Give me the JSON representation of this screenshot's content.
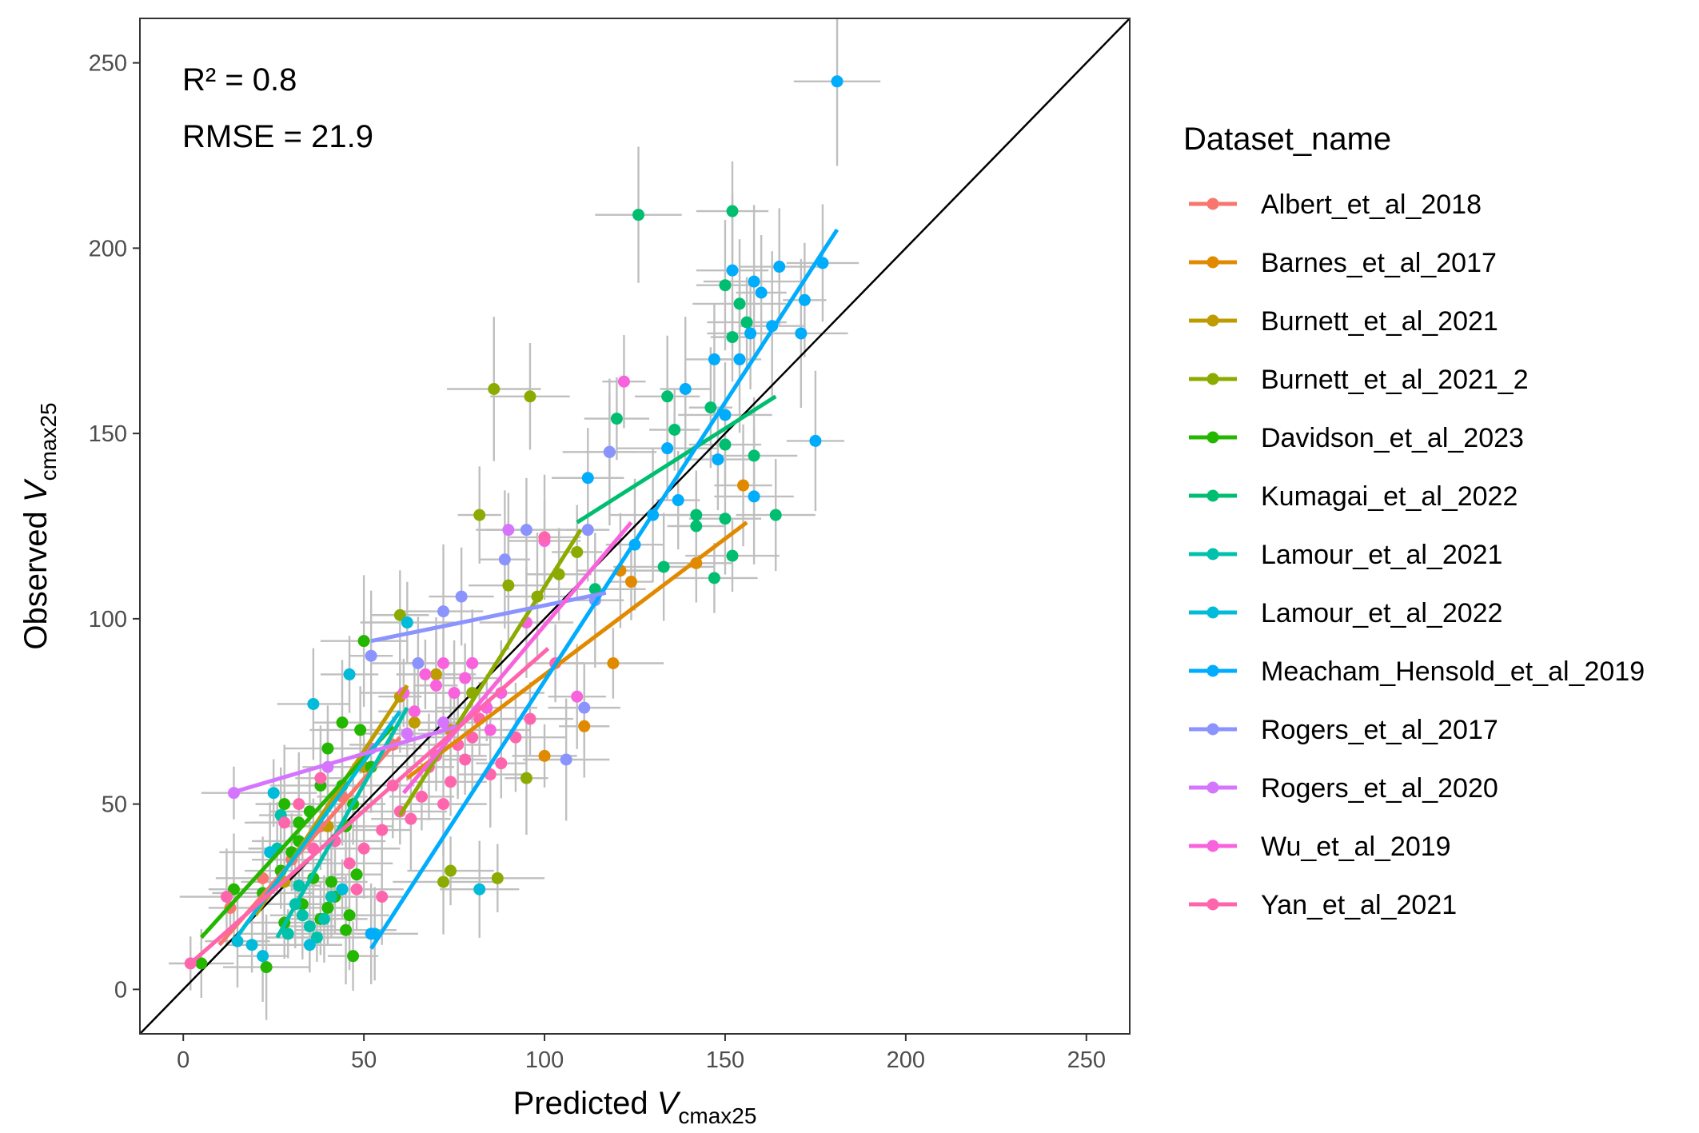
{
  "chart_data": {
    "type": "scatter",
    "title": "",
    "xlabel": {
      "main": "Predicted ",
      "var": "V",
      "sub": "cmax25"
    },
    "ylabel": {
      "main": "Observed ",
      "var": "V",
      "sub": "cmax25"
    },
    "xlim": [
      -12,
      262
    ],
    "ylim": [
      -12,
      262
    ],
    "xticks": [
      0,
      50,
      100,
      150,
      200,
      250
    ],
    "yticks": [
      0,
      50,
      100,
      150,
      200,
      250
    ],
    "grid": false,
    "one_to_one_line": true,
    "annotations": [
      "R² = 0.8",
      "RMSE = 21.9"
    ],
    "legend": {
      "title": "Dataset_name",
      "position": "right"
    },
    "series": [
      {
        "name": "Albert_et_al_2018",
        "color": "#F8766D",
        "points": [
          [
            13,
            22
          ],
          [
            22,
            30
          ],
          [
            30,
            35
          ],
          [
            38,
            44
          ],
          [
            44,
            52
          ],
          [
            52,
            60
          ],
          [
            58,
            66
          ]
        ],
        "fit": [
          [
            10,
            12
          ],
          [
            60,
            68
          ]
        ]
      },
      {
        "name": "Barnes_et_al_2017",
        "color": "#E18A00",
        "points": [
          [
            100,
            63
          ],
          [
            111,
            71
          ],
          [
            119,
            88
          ],
          [
            121,
            113
          ],
          [
            142,
            115
          ],
          [
            155,
            136
          ],
          [
            124,
            110
          ]
        ],
        "fit": [
          [
            62,
            57
          ],
          [
            156,
            126
          ]
        ]
      },
      {
        "name": "Burnett_et_al_2021",
        "color": "#BE9C00",
        "points": [
          [
            28,
            29
          ],
          [
            40,
            44
          ],
          [
            50,
            60
          ],
          [
            60,
            79
          ],
          [
            64,
            72
          ],
          [
            70,
            85
          ],
          [
            74,
            70
          ]
        ],
        "fit": [
          [
            20,
            20
          ],
          [
            62,
            82
          ]
        ]
      },
      {
        "name": "Burnett_et_al_2021_2",
        "color": "#8CAB00",
        "points": [
          [
            82,
            128
          ],
          [
            86,
            162
          ],
          [
            96,
            160
          ],
          [
            98,
            106
          ],
          [
            109,
            118
          ],
          [
            72,
            29
          ],
          [
            74,
            32
          ],
          [
            80,
            80
          ],
          [
            60,
            101
          ],
          [
            95,
            57
          ],
          [
            87,
            30
          ],
          [
            90,
            109
          ],
          [
            104,
            112
          ]
        ],
        "fit": [
          [
            60,
            47
          ],
          [
            110,
            124
          ]
        ]
      },
      {
        "name": "Davidson_et_al_2023",
        "color": "#24B700",
        "points": [
          [
            5,
            7
          ],
          [
            14,
            27
          ],
          [
            22,
            26
          ],
          [
            23,
            6
          ],
          [
            27,
            32
          ],
          [
            28,
            50
          ],
          [
            30,
            37
          ],
          [
            32,
            45
          ],
          [
            35,
            48
          ],
          [
            36,
            30
          ],
          [
            38,
            19
          ],
          [
            38,
            55
          ],
          [
            40,
            65
          ],
          [
            41,
            29
          ],
          [
            42,
            25
          ],
          [
            44,
            55
          ],
          [
            45,
            44
          ],
          [
            46,
            20
          ],
          [
            47,
            50
          ],
          [
            48,
            31
          ],
          [
            49,
            70
          ],
          [
            50,
            94
          ],
          [
            52,
            60
          ],
          [
            44,
            72
          ],
          [
            40,
            22
          ],
          [
            32,
            40
          ],
          [
            28,
            18
          ],
          [
            33,
            23
          ],
          [
            47,
            9
          ],
          [
            45,
            16
          ]
        ],
        "fit": [
          [
            5,
            14
          ],
          [
            58,
            71
          ]
        ]
      },
      {
        "name": "Kumagai_et_al_2022",
        "color": "#00BE70",
        "points": [
          [
            126,
            209
          ],
          [
            152,
            210
          ],
          [
            150,
            190
          ],
          [
            152,
            176
          ],
          [
            154,
            185
          ],
          [
            156,
            180
          ],
          [
            134,
            160
          ],
          [
            136,
            151
          ],
          [
            133,
            114
          ],
          [
            147,
            111
          ],
          [
            150,
            127
          ],
          [
            142,
            128
          ],
          [
            146,
            157
          ],
          [
            152,
            117
          ],
          [
            164,
            128
          ],
          [
            120,
            154
          ],
          [
            118,
            145
          ],
          [
            114,
            108
          ],
          [
            158,
            144
          ],
          [
            150,
            147
          ],
          [
            142,
            125
          ]
        ],
        "fit": [
          [
            109,
            126
          ],
          [
            164,
            160
          ]
        ]
      },
      {
        "name": "Lamour_et_al_2021",
        "color": "#00C1AB",
        "points": [
          [
            27,
            47
          ],
          [
            29,
            15
          ],
          [
            31,
            23
          ],
          [
            33,
            20
          ],
          [
            35,
            17
          ],
          [
            37,
            14
          ],
          [
            39,
            19
          ],
          [
            41,
            25
          ],
          [
            26,
            38
          ],
          [
            32,
            28
          ]
        ],
        "fit": [
          [
            26,
            14
          ],
          [
            62,
            76
          ]
        ]
      },
      {
        "name": "Lamour_et_al_2022",
        "color": "#00BBDA",
        "points": [
          [
            15,
            13
          ],
          [
            19,
            12
          ],
          [
            24,
            37
          ],
          [
            25,
            53
          ],
          [
            36,
            77
          ],
          [
            46,
            85
          ],
          [
            53,
            15
          ],
          [
            62,
            99
          ],
          [
            82,
            27
          ],
          [
            35,
            12
          ],
          [
            22,
            9
          ],
          [
            44,
            27
          ]
        ],
        "fit": [
          [
            14,
            13
          ],
          [
            60,
            75
          ]
        ]
      },
      {
        "name": "Meacham_Hensold_et_al_2019",
        "color": "#00ACFC",
        "points": [
          [
            181,
            245
          ],
          [
            177,
            196
          ],
          [
            175,
            148
          ],
          [
            172,
            186
          ],
          [
            171,
            177
          ],
          [
            165,
            195
          ],
          [
            163,
            179
          ],
          [
            160,
            188
          ],
          [
            158,
            191
          ],
          [
            157,
            177
          ],
          [
            152,
            194
          ],
          [
            147,
            170
          ],
          [
            154,
            170
          ],
          [
            150,
            155
          ],
          [
            158,
            133
          ],
          [
            148,
            143
          ],
          [
            139,
            162
          ],
          [
            134,
            146
          ],
          [
            130,
            128
          ],
          [
            112,
            138
          ],
          [
            125,
            120
          ],
          [
            137,
            132
          ],
          [
            52,
            15
          ]
        ],
        "fit": [
          [
            52,
            11
          ],
          [
            181,
            205
          ]
        ]
      },
      {
        "name": "Rogers_et_al_2017",
        "color": "#8B93FF",
        "points": [
          [
            52,
            90
          ],
          [
            65,
            88
          ],
          [
            72,
            102
          ],
          [
            77,
            106
          ],
          [
            89,
            116
          ],
          [
            95,
            124
          ],
          [
            106,
            62
          ],
          [
            111,
            76
          ],
          [
            114,
            105
          ],
          [
            112,
            124
          ],
          [
            118,
            145
          ]
        ],
        "fit": [
          [
            52,
            94
          ],
          [
            117,
            107
          ]
        ]
      },
      {
        "name": "Rogers_et_al_2020",
        "color": "#D575FE",
        "points": [
          [
            14,
            53
          ],
          [
            40,
            60
          ],
          [
            52,
            65
          ],
          [
            62,
            69
          ],
          [
            72,
            72
          ],
          [
            80,
            88
          ],
          [
            90,
            124
          ]
        ],
        "fit": [
          [
            13,
            53
          ],
          [
            76,
            71
          ]
        ]
      },
      {
        "name": "Wu_et_al_2019",
        "color": "#F962DD",
        "points": [
          [
            61,
            80
          ],
          [
            64,
            75
          ],
          [
            67,
            85
          ],
          [
            70,
            82
          ],
          [
            72,
            88
          ],
          [
            75,
            80
          ],
          [
            78,
            84
          ],
          [
            80,
            88
          ],
          [
            84,
            76
          ],
          [
            88,
            80
          ],
          [
            100,
            121
          ],
          [
            109,
            79
          ],
          [
            122,
            164
          ],
          [
            95,
            99
          ],
          [
            85,
            70
          ],
          [
            76,
            66
          ]
        ],
        "fit": [
          [
            61,
            53
          ],
          [
            124,
            126
          ]
        ]
      },
      {
        "name": "Yan_et_al_2021",
        "color": "#FF65AC",
        "points": [
          [
            2,
            7
          ],
          [
            12,
            25
          ],
          [
            28,
            45
          ],
          [
            32,
            50
          ],
          [
            38,
            57
          ],
          [
            42,
            40
          ],
          [
            46,
            34
          ],
          [
            50,
            38
          ],
          [
            55,
            43
          ],
          [
            58,
            55
          ],
          [
            60,
            48
          ],
          [
            63,
            46
          ],
          [
            66,
            52
          ],
          [
            68,
            60
          ],
          [
            70,
            63
          ],
          [
            72,
            50
          ],
          [
            74,
            56
          ],
          [
            76,
            66
          ],
          [
            78,
            62
          ],
          [
            80,
            68
          ],
          [
            82,
            73
          ],
          [
            85,
            58
          ],
          [
            88,
            61
          ],
          [
            92,
            68
          ],
          [
            96,
            73
          ],
          [
            100,
            122
          ],
          [
            103,
            88
          ],
          [
            55,
            25
          ],
          [
            48,
            27
          ],
          [
            36,
            38
          ]
        ],
        "fit": [
          [
            2,
            7
          ],
          [
            101,
            92
          ]
        ]
      }
    ]
  }
}
